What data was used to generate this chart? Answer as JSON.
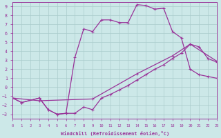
{
  "xlabel": "Windchill (Refroidissement éolien,°C)",
  "xlim": [
    0,
    23
  ],
  "ylim": [
    -3.5,
    9.5
  ],
  "yticks": [
    -3,
    -2,
    -1,
    0,
    1,
    2,
    3,
    4,
    5,
    6,
    7,
    8,
    9
  ],
  "xticks": [
    0,
    1,
    2,
    3,
    4,
    5,
    6,
    7,
    8,
    9,
    10,
    11,
    12,
    13,
    14,
    15,
    16,
    17,
    18,
    19,
    20,
    21,
    22,
    23
  ],
  "bg_color": "#cce8e8",
  "grid_color": "#aacccc",
  "line_color": "#993399",
  "line_width": 0.9,
  "curve_top_x": [
    0,
    1,
    3,
    4,
    5,
    6,
    7,
    8,
    9,
    10,
    11,
    12,
    13,
    14,
    15,
    16,
    17,
    18,
    19,
    20,
    21,
    22,
    23
  ],
  "curve_top_y": [
    -1.2,
    -1.7,
    -1.2,
    -2.5,
    -3.0,
    -2.9,
    3.3,
    6.5,
    6.2,
    7.5,
    7.5,
    7.2,
    7.2,
    9.2,
    9.1,
    8.7,
    8.8,
    6.2,
    5.5,
    2.0,
    1.4,
    1.2,
    1.0
  ],
  "curve_bot_x": [
    0,
    1,
    3,
    4,
    5,
    6,
    7,
    8,
    9,
    10,
    11,
    12,
    13,
    14,
    15,
    16,
    17,
    18,
    19,
    20,
    21,
    22,
    23
  ],
  "curve_bot_y": [
    -1.2,
    -1.7,
    -1.2,
    -2.5,
    -3.0,
    -2.9,
    -2.9,
    -2.2,
    -2.5,
    -1.2,
    -0.8,
    -0.3,
    0.2,
    0.8,
    1.4,
    2.0,
    2.5,
    3.2,
    3.8,
    4.8,
    4.5,
    3.2,
    2.8
  ],
  "curve_mid_x": [
    0,
    3,
    9,
    14,
    18,
    20,
    23
  ],
  "curve_mid_y": [
    -1.2,
    -1.5,
    -1.3,
    1.5,
    3.5,
    4.8,
    2.9
  ]
}
